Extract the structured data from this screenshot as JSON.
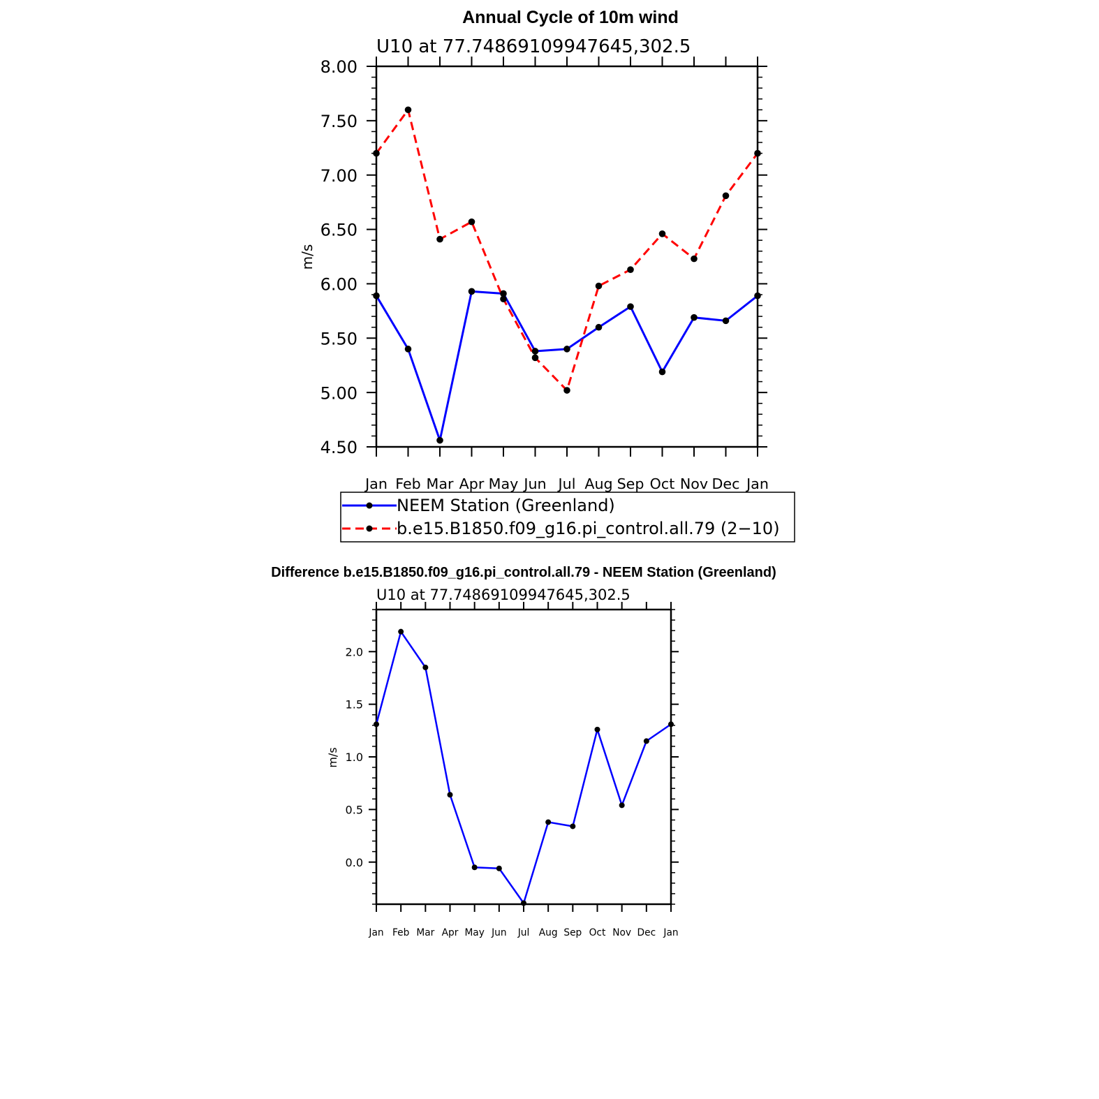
{
  "colors": {
    "series_1": "#0000ff",
    "series_2": "#ff0000",
    "marker": "#000000",
    "axis": "#000000"
  },
  "chart_data": [
    {
      "type": "line",
      "title": "Annual Cycle of 10m wind",
      "subtitle": "U10 at 77.74869109947645,302.5",
      "ylabel": "m/s",
      "ylim": [
        4.5,
        8.0
      ],
      "yticks": [
        "4.50",
        "5.00",
        "5.50",
        "6.00",
        "6.50",
        "7.00",
        "7.50",
        "8.00"
      ],
      "categories": [
        "Jan",
        "Feb",
        "Mar",
        "Apr",
        "May",
        "Jun",
        "Jul",
        "Aug",
        "Sep",
        "Oct",
        "Nov",
        "Dec",
        "Jan"
      ],
      "grid": false,
      "legend": "bottom",
      "series": [
        {
          "name": "NEEM Station (Greenland)",
          "style": "solid",
          "values": [
            5.89,
            5.4,
            4.56,
            5.93,
            5.91,
            5.38,
            5.4,
            5.6,
            5.79,
            5.19,
            5.69,
            5.66,
            5.89
          ]
        },
        {
          "name": "b.e15.B1850.f09_g16.pi_control.all.79 (2−10)",
          "style": "dashed",
          "values": [
            7.2,
            7.6,
            6.41,
            6.57,
            5.86,
            5.32,
            5.02,
            5.98,
            6.13,
            6.46,
            6.23,
            6.81,
            7.2
          ]
        }
      ]
    },
    {
      "type": "line",
      "title": "Difference b.e15.B1850.f09_g16.pi_control.all.79 - NEEM Station (Greenland)",
      "subtitle": "U10 at 77.74869109947645,302.5",
      "ylabel": "m/s",
      "ylim": [
        -0.4,
        2.4
      ],
      "yticks": [
        "0.0",
        "0.5",
        "1.0",
        "1.5",
        "2.0"
      ],
      "categories": [
        "Jan",
        "Feb",
        "Mar",
        "Apr",
        "May",
        "Jun",
        "Jul",
        "Aug",
        "Sep",
        "Oct",
        "Nov",
        "Dec",
        "Jan"
      ],
      "grid": false,
      "series": [
        {
          "style": "solid",
          "values": [
            1.31,
            2.19,
            1.85,
            0.64,
            -0.05,
            -0.06,
            -0.39,
            0.38,
            0.34,
            1.26,
            0.54,
            1.15,
            1.31
          ]
        }
      ]
    }
  ]
}
